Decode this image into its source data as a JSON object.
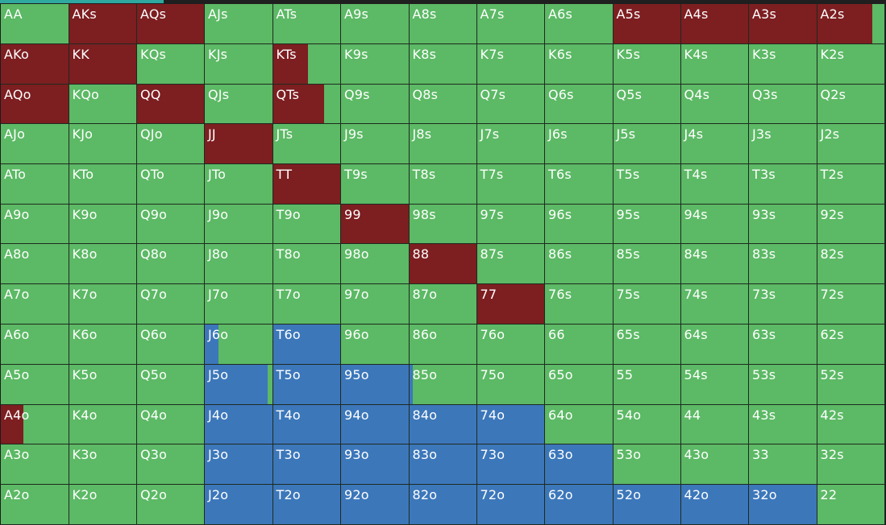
{
  "colors": {
    "fold": "#5cb965",
    "raise": "#7d1e21",
    "call": "#3c77ba",
    "background": "#1c1c1e",
    "progress": "#2fa8a0"
  },
  "progress": 0.185,
  "grid": {
    "rows": [
      [
        {
          "hand": "AA",
          "fold": 0.98
        },
        {
          "hand": "AKs",
          "raise": 1
        },
        {
          "hand": "AQs",
          "raise": 1
        },
        {
          "hand": "AJs",
          "fold": 1
        },
        {
          "hand": "ATs",
          "fold": 1
        },
        {
          "hand": "A9s",
          "fold": 1
        },
        {
          "hand": "A8s",
          "fold": 1
        },
        {
          "hand": "A7s",
          "fold": 1
        },
        {
          "hand": "A6s",
          "fold": 1
        },
        {
          "hand": "A5s",
          "raise": 1
        },
        {
          "hand": "A4s",
          "raise": 1
        },
        {
          "hand": "A3s",
          "raise": 1
        },
        {
          "hand": "A2s",
          "raise": 0.82
        }
      ],
      [
        {
          "hand": "AKo",
          "raise": 1
        },
        {
          "hand": "KK",
          "raise": 1
        },
        {
          "hand": "KQs",
          "fold": 1
        },
        {
          "hand": "KJs",
          "fold": 1
        },
        {
          "hand": "KTs",
          "raise": 0.52
        },
        {
          "hand": "K9s",
          "fold": 1
        },
        {
          "hand": "K8s",
          "fold": 1
        },
        {
          "hand": "K7s",
          "fold": 1
        },
        {
          "hand": "K6s",
          "fold": 1
        },
        {
          "hand": "K5s",
          "fold": 1
        },
        {
          "hand": "K4s",
          "fold": 1
        },
        {
          "hand": "K3s",
          "fold": 1
        },
        {
          "hand": "K2s",
          "fold": 1
        }
      ],
      [
        {
          "hand": "AQo",
          "raise": 1
        },
        {
          "hand": "KQo",
          "fold": 1
        },
        {
          "hand": "QQ",
          "raise": 1
        },
        {
          "hand": "QJs",
          "fold": 1
        },
        {
          "hand": "QTs",
          "raise": 0.76
        },
        {
          "hand": "Q9s",
          "fold": 1
        },
        {
          "hand": "Q8s",
          "fold": 1
        },
        {
          "hand": "Q7s",
          "fold": 1
        },
        {
          "hand": "Q6s",
          "fold": 1
        },
        {
          "hand": "Q5s",
          "fold": 1
        },
        {
          "hand": "Q4s",
          "fold": 1
        },
        {
          "hand": "Q3s",
          "fold": 1
        },
        {
          "hand": "Q2s",
          "fold": 1
        }
      ],
      [
        {
          "hand": "AJo",
          "fold": 1
        },
        {
          "hand": "KJo",
          "fold": 1
        },
        {
          "hand": "QJo",
          "fold": 1
        },
        {
          "hand": "JJ",
          "raise": 1
        },
        {
          "hand": "JTs",
          "fold": 1
        },
        {
          "hand": "J9s",
          "fold": 1
        },
        {
          "hand": "J8s",
          "fold": 1
        },
        {
          "hand": "J7s",
          "fold": 1
        },
        {
          "hand": "J6s",
          "fold": 1
        },
        {
          "hand": "J5s",
          "fold": 1
        },
        {
          "hand": "J4s",
          "fold": 1
        },
        {
          "hand": "J3s",
          "fold": 1
        },
        {
          "hand": "J2s",
          "fold": 1
        }
      ],
      [
        {
          "hand": "ATo",
          "fold": 1
        },
        {
          "hand": "KTo",
          "fold": 1
        },
        {
          "hand": "QTo",
          "fold": 1
        },
        {
          "hand": "JTo",
          "fold": 1
        },
        {
          "hand": "TT",
          "raise": 1
        },
        {
          "hand": "T9s",
          "fold": 1
        },
        {
          "hand": "T8s",
          "fold": 1
        },
        {
          "hand": "T7s",
          "fold": 1
        },
        {
          "hand": "T6s",
          "fold": 1
        },
        {
          "hand": "T5s",
          "fold": 1
        },
        {
          "hand": "T4s",
          "fold": 1
        },
        {
          "hand": "T3s",
          "fold": 1
        },
        {
          "hand": "T2s",
          "fold": 1
        }
      ],
      [
        {
          "hand": "A9o",
          "fold": 1
        },
        {
          "hand": "K9o",
          "fold": 1
        },
        {
          "hand": "Q9o",
          "fold": 1
        },
        {
          "hand": "J9o",
          "fold": 1
        },
        {
          "hand": "T9o",
          "fold": 1
        },
        {
          "hand": "99",
          "raise": 1
        },
        {
          "hand": "98s",
          "fold": 1
        },
        {
          "hand": "97s",
          "fold": 1
        },
        {
          "hand": "96s",
          "fold": 1
        },
        {
          "hand": "95s",
          "fold": 1
        },
        {
          "hand": "94s",
          "fold": 1
        },
        {
          "hand": "93s",
          "fold": 1
        },
        {
          "hand": "92s",
          "fold": 1
        }
      ],
      [
        {
          "hand": "A8o",
          "fold": 1
        },
        {
          "hand": "K8o",
          "fold": 1
        },
        {
          "hand": "Q8o",
          "fold": 1
        },
        {
          "hand": "J8o",
          "fold": 1
        },
        {
          "hand": "T8o",
          "fold": 1
        },
        {
          "hand": "98o",
          "fold": 1
        },
        {
          "hand": "88",
          "raise": 1
        },
        {
          "hand": "87s",
          "fold": 1
        },
        {
          "hand": "86s",
          "fold": 1
        },
        {
          "hand": "85s",
          "fold": 1
        },
        {
          "hand": "84s",
          "fold": 1
        },
        {
          "hand": "83s",
          "fold": 1
        },
        {
          "hand": "82s",
          "fold": 1
        }
      ],
      [
        {
          "hand": "A7o",
          "fold": 1
        },
        {
          "hand": "K7o",
          "fold": 1
        },
        {
          "hand": "Q7o",
          "fold": 1
        },
        {
          "hand": "J7o",
          "fold": 1
        },
        {
          "hand": "T7o",
          "fold": 1
        },
        {
          "hand": "97o",
          "fold": 1
        },
        {
          "hand": "87o",
          "fold": 1
        },
        {
          "hand": "77",
          "raise": 1
        },
        {
          "hand": "76s",
          "fold": 1
        },
        {
          "hand": "75s",
          "fold": 1
        },
        {
          "hand": "74s",
          "fold": 1
        },
        {
          "hand": "73s",
          "fold": 1
        },
        {
          "hand": "72s",
          "fold": 1
        }
      ],
      [
        {
          "hand": "A6o",
          "fold": 1
        },
        {
          "hand": "K6o",
          "fold": 1
        },
        {
          "hand": "Q6o",
          "fold": 1
        },
        {
          "hand": "J6o",
          "fold": 0.8,
          "call": 0.2
        },
        {
          "hand": "T6o",
          "call": 1
        },
        {
          "hand": "96o",
          "fold": 1
        },
        {
          "hand": "86o",
          "fold": 1
        },
        {
          "hand": "76o",
          "fold": 1
        },
        {
          "hand": "66",
          "fold": 1
        },
        {
          "hand": "65s",
          "fold": 1
        },
        {
          "hand": "64s",
          "fold": 1
        },
        {
          "hand": "63s",
          "fold": 1
        },
        {
          "hand": "62s",
          "fold": 1
        }
      ],
      [
        {
          "hand": "A5o",
          "fold": 1
        },
        {
          "hand": "K5o",
          "fold": 1
        },
        {
          "hand": "Q5o",
          "fold": 1
        },
        {
          "hand": "J5o",
          "fold": 0.07,
          "call": 0.93
        },
        {
          "hand": "T5o",
          "call": 1
        },
        {
          "hand": "95o",
          "call": 1
        },
        {
          "hand": "85o",
          "fold": 0.94,
          "call": 0.06
        },
        {
          "hand": "75o",
          "fold": 1
        },
        {
          "hand": "65o",
          "fold": 1
        },
        {
          "hand": "55",
          "fold": 1
        },
        {
          "hand": "54s",
          "fold": 1
        },
        {
          "hand": "53s",
          "fold": 1
        },
        {
          "hand": "52s",
          "fold": 1
        }
      ],
      [
        {
          "hand": "A4o",
          "raise": 0.33,
          "fold": 0.67
        },
        {
          "hand": "K4o",
          "fold": 1
        },
        {
          "hand": "Q4o",
          "fold": 1
        },
        {
          "hand": "J4o",
          "call": 1
        },
        {
          "hand": "T4o",
          "call": 1
        },
        {
          "hand": "94o",
          "call": 1
        },
        {
          "hand": "84o",
          "call": 1
        },
        {
          "hand": "74o",
          "call": 1
        },
        {
          "hand": "64o",
          "fold": 1
        },
        {
          "hand": "54o",
          "fold": 1
        },
        {
          "hand": "44",
          "fold": 1
        },
        {
          "hand": "43s",
          "fold": 1
        },
        {
          "hand": "42s",
          "fold": 1
        }
      ],
      [
        {
          "hand": "A3o",
          "fold": 1
        },
        {
          "hand": "K3o",
          "fold": 1
        },
        {
          "hand": "Q3o",
          "fold": 1
        },
        {
          "hand": "J3o",
          "call": 1
        },
        {
          "hand": "T3o",
          "call": 1
        },
        {
          "hand": "93o",
          "call": 1
        },
        {
          "hand": "83o",
          "call": 1
        },
        {
          "hand": "73o",
          "call": 1
        },
        {
          "hand": "63o",
          "call": 1
        },
        {
          "hand": "53o",
          "fold": 1
        },
        {
          "hand": "43o",
          "fold": 1
        },
        {
          "hand": "33",
          "fold": 1
        },
        {
          "hand": "32s",
          "fold": 1
        }
      ],
      [
        {
          "hand": "A2o",
          "fold": 1
        },
        {
          "hand": "K2o",
          "fold": 1
        },
        {
          "hand": "Q2o",
          "fold": 1
        },
        {
          "hand": "J2o",
          "call": 1
        },
        {
          "hand": "T2o",
          "call": 1
        },
        {
          "hand": "92o",
          "call": 1
        },
        {
          "hand": "82o",
          "call": 1
        },
        {
          "hand": "72o",
          "call": 1
        },
        {
          "hand": "62o",
          "call": 1
        },
        {
          "hand": "52o",
          "call": 1
        },
        {
          "hand": "42o",
          "call": 1
        },
        {
          "hand": "32o",
          "call": 1
        },
        {
          "hand": "22",
          "fold": 1
        }
      ]
    ]
  }
}
